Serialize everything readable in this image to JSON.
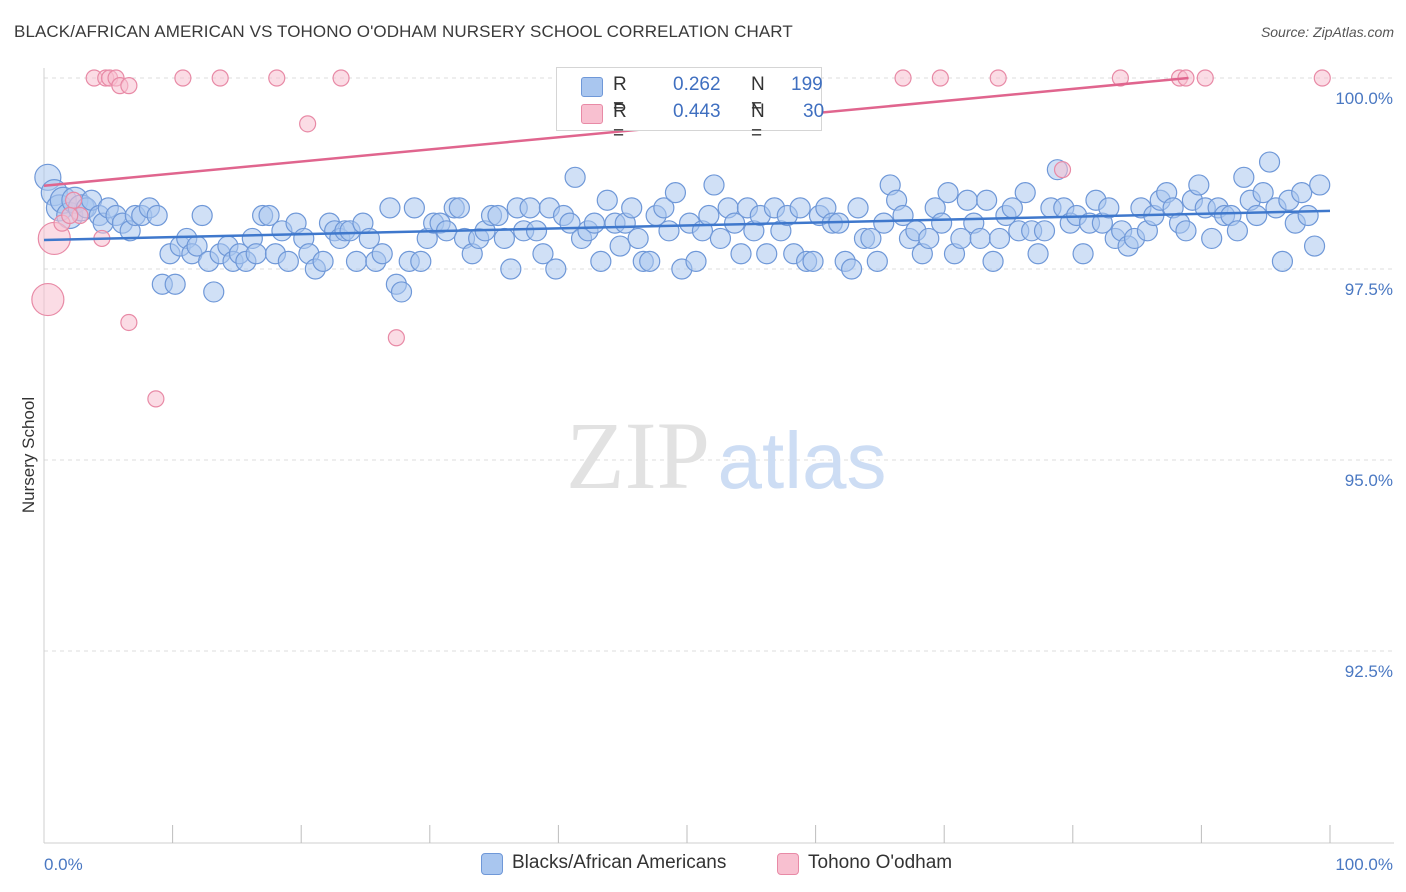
{
  "title": "BLACK/AFRICAN AMERICAN VS TOHONO O'ODHAM NURSERY SCHOOL CORRELATION CHART",
  "source": "Source: ZipAtlas.com",
  "watermark": {
    "zip": "ZIP",
    "atlas": "atlas"
  },
  "legend": {
    "r_label": "R =",
    "n_label": "N =",
    "series": [
      {
        "r": "0.262",
        "n": "199",
        "color": "#a9c6ef",
        "border": "#6f98d8"
      },
      {
        "r": "0.443",
        "n": "30",
        "color": "#f8c0d0",
        "border": "#e88aa6"
      }
    ]
  },
  "bottom_legend": [
    "Blacks/African Americans",
    "Tohono O'odham"
  ],
  "chart_data": {
    "type": "scatter",
    "title": "BLACK/AFRICAN AMERICAN VS TOHONO O'ODHAM NURSERY SCHOOL CORRELATION CHART",
    "xlabel": "",
    "ylabel": "Nursery School",
    "xlim": [
      0,
      100
    ],
    "ylim": [
      90.0,
      100.3
    ],
    "x_tick_labels": [
      "0.0%",
      "100.0%"
    ],
    "y_ticks": [
      92.5,
      95.0,
      97.5,
      100.0
    ],
    "y_tick_labels": [
      "92.5%",
      "95.0%",
      "97.5%",
      "100.0%"
    ],
    "grid": true,
    "legend_position": "top-center",
    "series": [
      {
        "name": "Blacks/African Americans",
        "color": "#6f98d8",
        "fill": "#a9c6ef",
        "trend": {
          "x": [
            0,
            100
          ],
          "y": [
            97.88,
            98.26
          ]
        },
        "points": [
          [
            0.3,
            98.7
          ],
          [
            0.8,
            98.5
          ],
          [
            1.2,
            98.3
          ],
          [
            1.5,
            98.4
          ],
          [
            2.0,
            98.2
          ],
          [
            2.4,
            98.4
          ],
          [
            2.9,
            98.3
          ],
          [
            3.3,
            98.3
          ],
          [
            3.7,
            98.4
          ],
          [
            4.3,
            98.2
          ],
          [
            4.6,
            98.1
          ],
          [
            5.0,
            98.3
          ],
          [
            5.6,
            98.2
          ],
          [
            6.1,
            98.1
          ],
          [
            6.7,
            98.0
          ],
          [
            7.1,
            98.2
          ],
          [
            7.6,
            98.2
          ],
          [
            8.2,
            98.3
          ],
          [
            8.8,
            98.2
          ],
          [
            9.2,
            97.3
          ],
          [
            9.8,
            97.7
          ],
          [
            10.2,
            97.3
          ],
          [
            10.6,
            97.8
          ],
          [
            11.1,
            97.9
          ],
          [
            11.5,
            97.7
          ],
          [
            11.9,
            97.8
          ],
          [
            12.3,
            98.2
          ],
          [
            12.8,
            97.6
          ],
          [
            13.2,
            97.2
          ],
          [
            13.7,
            97.7
          ],
          [
            14.3,
            97.8
          ],
          [
            14.7,
            97.6
          ],
          [
            15.2,
            97.7
          ],
          [
            15.7,
            97.6
          ],
          [
            16.2,
            97.9
          ],
          [
            16.5,
            97.7
          ],
          [
            17.0,
            98.2
          ],
          [
            17.5,
            98.2
          ],
          [
            18.0,
            97.7
          ],
          [
            18.5,
            98.0
          ],
          [
            19.0,
            97.6
          ],
          [
            19.6,
            98.1
          ],
          [
            20.2,
            97.9
          ],
          [
            20.6,
            97.7
          ],
          [
            21.1,
            97.5
          ],
          [
            21.7,
            97.6
          ],
          [
            22.2,
            98.1
          ],
          [
            22.6,
            98.0
          ],
          [
            23.0,
            97.9
          ],
          [
            23.4,
            98.0
          ],
          [
            23.8,
            98.0
          ],
          [
            24.3,
            97.6
          ],
          [
            24.8,
            98.1
          ],
          [
            25.3,
            97.9
          ],
          [
            25.8,
            97.6
          ],
          [
            26.3,
            97.7
          ],
          [
            26.9,
            98.3
          ],
          [
            27.4,
            97.3
          ],
          [
            27.8,
            97.2
          ],
          [
            28.4,
            97.6
          ],
          [
            28.8,
            98.3
          ],
          [
            29.3,
            97.6
          ],
          [
            29.8,
            97.9
          ],
          [
            30.3,
            98.1
          ],
          [
            30.8,
            98.1
          ],
          [
            31.3,
            98.0
          ],
          [
            31.9,
            98.3
          ],
          [
            32.3,
            98.3
          ],
          [
            32.7,
            97.9
          ],
          [
            33.3,
            97.7
          ],
          [
            33.8,
            97.9
          ],
          [
            34.3,
            98.0
          ],
          [
            34.8,
            98.2
          ],
          [
            35.3,
            98.2
          ],
          [
            35.8,
            97.9
          ],
          [
            36.3,
            97.5
          ],
          [
            36.8,
            98.3
          ],
          [
            37.3,
            98.0
          ],
          [
            37.8,
            98.3
          ],
          [
            38.3,
            98.0
          ],
          [
            38.8,
            97.7
          ],
          [
            39.3,
            98.3
          ],
          [
            39.8,
            97.5
          ],
          [
            40.4,
            98.2
          ],
          [
            40.9,
            98.1
          ],
          [
            41.3,
            98.7
          ],
          [
            41.8,
            97.9
          ],
          [
            42.3,
            98.0
          ],
          [
            42.8,
            98.1
          ],
          [
            43.3,
            97.6
          ],
          [
            43.8,
            98.4
          ],
          [
            44.4,
            98.1
          ],
          [
            44.8,
            97.8
          ],
          [
            45.2,
            98.1
          ],
          [
            45.7,
            98.3
          ],
          [
            46.2,
            97.9
          ],
          [
            46.6,
            97.6
          ],
          [
            47.1,
            97.6
          ],
          [
            47.6,
            98.2
          ],
          [
            48.2,
            98.3
          ],
          [
            48.6,
            98.0
          ],
          [
            49.1,
            98.5
          ],
          [
            49.6,
            97.5
          ],
          [
            50.2,
            98.1
          ],
          [
            50.7,
            97.6
          ],
          [
            51.2,
            98.0
          ],
          [
            51.7,
            98.2
          ],
          [
            52.1,
            98.6
          ],
          [
            52.6,
            97.9
          ],
          [
            53.2,
            98.3
          ],
          [
            53.7,
            98.1
          ],
          [
            54.2,
            97.7
          ],
          [
            54.7,
            98.3
          ],
          [
            55.2,
            98.0
          ],
          [
            55.7,
            98.2
          ],
          [
            56.2,
            97.7
          ],
          [
            56.8,
            98.3
          ],
          [
            57.3,
            98.0
          ],
          [
            57.8,
            98.2
          ],
          [
            58.3,
            97.7
          ],
          [
            58.8,
            98.3
          ],
          [
            59.3,
            97.6
          ],
          [
            59.8,
            97.6
          ],
          [
            60.3,
            98.2
          ],
          [
            60.8,
            98.3
          ],
          [
            61.3,
            98.1
          ],
          [
            61.8,
            98.1
          ],
          [
            62.3,
            97.6
          ],
          [
            62.8,
            97.5
          ],
          [
            63.3,
            98.3
          ],
          [
            63.8,
            97.9
          ],
          [
            64.3,
            97.9
          ],
          [
            64.8,
            97.6
          ],
          [
            65.3,
            98.1
          ],
          [
            65.8,
            98.6
          ],
          [
            66.3,
            98.4
          ],
          [
            66.8,
            98.2
          ],
          [
            67.3,
            97.9
          ],
          [
            67.8,
            98.0
          ],
          [
            68.3,
            97.7
          ],
          [
            68.8,
            97.9
          ],
          [
            69.3,
            98.3
          ],
          [
            69.8,
            98.1
          ],
          [
            70.3,
            98.5
          ],
          [
            70.8,
            97.7
          ],
          [
            71.3,
            97.9
          ],
          [
            71.8,
            98.4
          ],
          [
            72.3,
            98.1
          ],
          [
            72.8,
            97.9
          ],
          [
            73.3,
            98.4
          ],
          [
            73.8,
            97.6
          ],
          [
            74.3,
            97.9
          ],
          [
            74.8,
            98.2
          ],
          [
            75.3,
            98.3
          ],
          [
            75.8,
            98.0
          ],
          [
            76.3,
            98.5
          ],
          [
            76.8,
            98.0
          ],
          [
            77.3,
            97.7
          ],
          [
            77.8,
            98.0
          ],
          [
            78.3,
            98.3
          ],
          [
            78.8,
            98.8
          ],
          [
            79.3,
            98.3
          ],
          [
            79.8,
            98.1
          ],
          [
            80.3,
            98.2
          ],
          [
            80.8,
            97.7
          ],
          [
            81.3,
            98.1
          ],
          [
            81.8,
            98.4
          ],
          [
            82.3,
            98.1
          ],
          [
            82.8,
            98.3
          ],
          [
            83.3,
            97.9
          ],
          [
            83.8,
            98.0
          ],
          [
            84.3,
            97.8
          ],
          [
            84.8,
            97.9
          ],
          [
            85.3,
            98.3
          ],
          [
            85.8,
            98.0
          ],
          [
            86.3,
            98.2
          ],
          [
            86.8,
            98.4
          ],
          [
            87.3,
            98.5
          ],
          [
            87.8,
            98.3
          ],
          [
            88.3,
            98.1
          ],
          [
            88.8,
            98.0
          ],
          [
            89.3,
            98.4
          ],
          [
            89.8,
            98.6
          ],
          [
            90.3,
            98.3
          ],
          [
            90.8,
            97.9
          ],
          [
            91.3,
            98.3
          ],
          [
            91.8,
            98.2
          ],
          [
            92.3,
            98.2
          ],
          [
            92.8,
            98.0
          ],
          [
            93.3,
            98.7
          ],
          [
            93.8,
            98.4
          ],
          [
            94.3,
            98.2
          ],
          [
            94.8,
            98.5
          ],
          [
            95.3,
            98.9
          ],
          [
            95.8,
            98.3
          ],
          [
            96.3,
            97.6
          ],
          [
            96.8,
            98.4
          ],
          [
            97.3,
            98.1
          ],
          [
            97.8,
            98.5
          ],
          [
            98.3,
            98.2
          ],
          [
            98.8,
            97.8
          ],
          [
            99.2,
            98.6
          ]
        ]
      },
      {
        "name": "Tohono O'odham",
        "color": "#e88aa6",
        "fill": "#f8c0d0",
        "trend": {
          "x": [
            0,
            89
          ],
          "y": [
            98.59,
            100.0
          ]
        },
        "points": [
          [
            0.3,
            97.1
          ],
          [
            0.8,
            97.9
          ],
          [
            1.4,
            98.1
          ],
          [
            2.3,
            98.4
          ],
          [
            2.8,
            98.2
          ],
          [
            4.5,
            97.9
          ],
          [
            3.9,
            100.0
          ],
          [
            4.8,
            100.0
          ],
          [
            5.1,
            100.0
          ],
          [
            5.6,
            100.0
          ],
          [
            5.9,
            99.9
          ],
          [
            6.6,
            99.9
          ],
          [
            6.6,
            96.8
          ],
          [
            8.7,
            95.8
          ],
          [
            10.8,
            100.0
          ],
          [
            13.7,
            100.0
          ],
          [
            18.1,
            100.0
          ],
          [
            20.5,
            99.4
          ],
          [
            23.1,
            100.0
          ],
          [
            27.4,
            96.6
          ],
          [
            66.8,
            100.0
          ],
          [
            69.7,
            100.0
          ],
          [
            74.2,
            100.0
          ],
          [
            79.2,
            98.8
          ],
          [
            83.7,
            100.0
          ],
          [
            88.3,
            100.0
          ],
          [
            88.8,
            100.0
          ],
          [
            90.3,
            100.0
          ],
          [
            99.4,
            100.0
          ],
          [
            2.0,
            98.2
          ]
        ]
      }
    ]
  }
}
